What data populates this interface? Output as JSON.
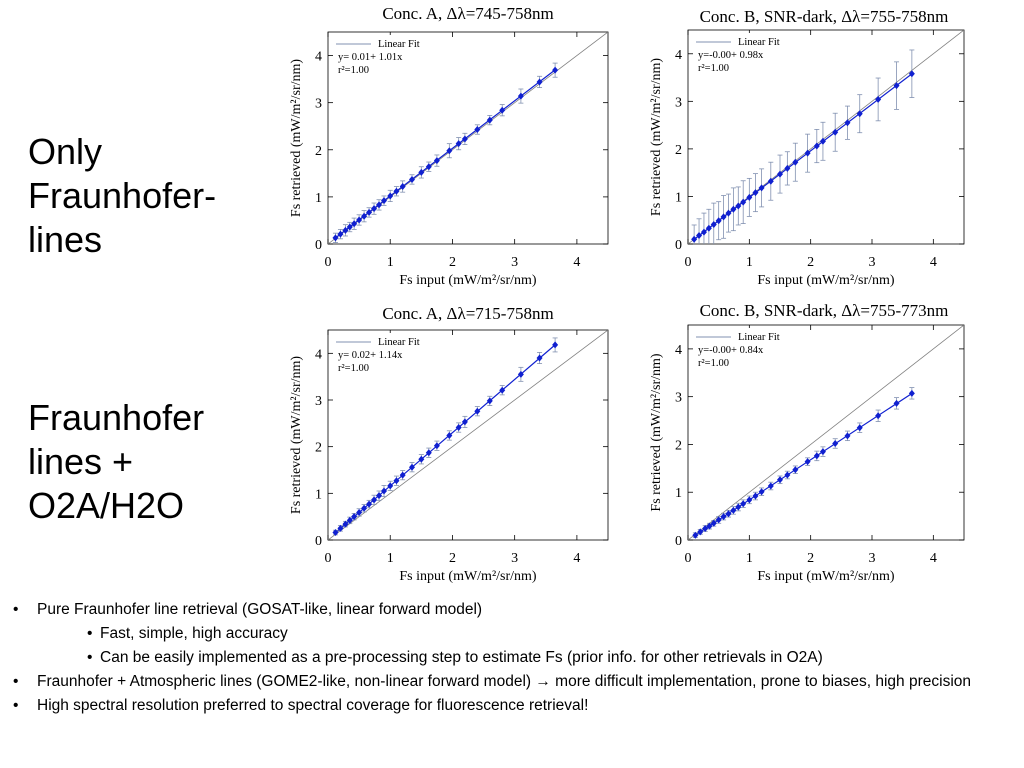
{
  "side_labels": {
    "top": [
      "Only",
      "Fraunhofer-",
      "lines"
    ],
    "bottom": [
      "Fraunhofer",
      "lines +",
      "O2A/H2O"
    ]
  },
  "chart_data": [
    {
      "type": "scatter",
      "title": "Conc. A, Δλ=745-758nm",
      "xlabel": "Fs input (mW/m²/sr/nm)",
      "ylabel": "Fs retrieved (mW/m²/sr/nm)",
      "xlim": [
        0,
        4.5
      ],
      "ylim": [
        0,
        4.5
      ],
      "xticks": [
        0,
        1,
        2,
        3,
        4
      ],
      "yticks": [
        0,
        1,
        2,
        3,
        4
      ],
      "legend": {
        "entry": "Linear Fit",
        "equation": "y= 0.01+ 1.01x",
        "r2": "r²=1.00",
        "position": "top-left"
      },
      "fit": {
        "intercept": 0.01,
        "slope": 1.01
      },
      "reference_line": "1:1",
      "series": [
        {
          "points": [
            [
              0.12,
              0.13
            ],
            [
              0.2,
              0.21
            ],
            [
              0.28,
              0.29
            ],
            [
              0.35,
              0.36
            ],
            [
              0.42,
              0.43
            ],
            [
              0.5,
              0.51
            ],
            [
              0.58,
              0.59
            ],
            [
              0.66,
              0.67
            ],
            [
              0.74,
              0.75
            ],
            [
              0.82,
              0.83
            ],
            [
              0.9,
              0.92
            ],
            [
              1.0,
              1.02
            ],
            [
              1.1,
              1.12
            ],
            [
              1.2,
              1.22
            ],
            [
              1.35,
              1.37
            ],
            [
              1.5,
              1.52
            ],
            [
              1.62,
              1.64
            ],
            [
              1.75,
              1.77
            ],
            [
              1.95,
              1.98
            ],
            [
              2.1,
              2.13
            ],
            [
              2.2,
              2.23
            ],
            [
              2.4,
              2.43
            ],
            [
              2.6,
              2.63
            ],
            [
              2.8,
              2.84
            ],
            [
              3.1,
              3.14
            ],
            [
              3.4,
              3.44
            ],
            [
              3.65,
              3.69
            ]
          ],
          "errors": [
            0.1,
            0.1,
            0.12,
            0.1,
            0.12,
            0.11,
            0.12,
            0.1,
            0.12,
            0.11,
            0.1,
            0.12,
            0.1,
            0.12,
            0.1,
            0.12,
            0.1,
            0.12,
            0.15,
            0.13,
            0.12,
            0.1,
            0.1,
            0.12,
            0.15,
            0.12,
            0.15
          ]
        }
      ]
    },
    {
      "type": "scatter",
      "title": "Conc. B, SNR-dark, Δλ=755-758nm",
      "xlabel": "Fs input (mW/m²/sr/nm)",
      "ylabel": "Fs retrieved (mW/m²/sr/nm)",
      "xlim": [
        0,
        4.5
      ],
      "ylim": [
        0,
        4.5
      ],
      "xticks": [
        0,
        1,
        2,
        3,
        4
      ],
      "yticks": [
        0,
        1,
        2,
        3,
        4
      ],
      "legend": {
        "entry": "Linear Fit",
        "equation": "y=-0.00+ 0.98x",
        "r2": "r²=1.00",
        "position": "top-left"
      },
      "fit": {
        "intercept": 0.0,
        "slope": 0.98
      },
      "reference_line": "1:1",
      "series": [
        {
          "points": [
            [
              0.1,
              0.1
            ],
            [
              0.18,
              0.18
            ],
            [
              0.26,
              0.25
            ],
            [
              0.34,
              0.33
            ],
            [
              0.42,
              0.41
            ],
            [
              0.5,
              0.49
            ],
            [
              0.58,
              0.57
            ],
            [
              0.66,
              0.65
            ],
            [
              0.74,
              0.73
            ],
            [
              0.82,
              0.8
            ],
            [
              0.9,
              0.88
            ],
            [
              1.0,
              0.98
            ],
            [
              1.1,
              1.08
            ],
            [
              1.2,
              1.18
            ],
            [
              1.35,
              1.32
            ],
            [
              1.5,
              1.47
            ],
            [
              1.62,
              1.59
            ],
            [
              1.75,
              1.72
            ],
            [
              1.95,
              1.91
            ],
            [
              2.1,
              2.06
            ],
            [
              2.2,
              2.16
            ],
            [
              2.4,
              2.35
            ],
            [
              2.6,
              2.55
            ],
            [
              2.8,
              2.74
            ],
            [
              3.1,
              3.04
            ],
            [
              3.4,
              3.33
            ],
            [
              3.65,
              3.58
            ]
          ],
          "errors": [
            0.3,
            0.35,
            0.4,
            0.4,
            0.45,
            0.4,
            0.45,
            0.4,
            0.45,
            0.4,
            0.45,
            0.4,
            0.4,
            0.4,
            0.4,
            0.4,
            0.35,
            0.4,
            0.4,
            0.35,
            0.4,
            0.4,
            0.35,
            0.4,
            0.45,
            0.5,
            0.5
          ]
        }
      ]
    },
    {
      "type": "scatter",
      "title": "Conc. A, Δλ=715-758nm",
      "xlabel": "Fs input (mW/m²/sr/nm)",
      "ylabel": "Fs retrieved (mW/m²/sr/nm)",
      "xlim": [
        0,
        4.5
      ],
      "ylim": [
        0,
        4.5
      ],
      "xticks": [
        0,
        1,
        2,
        3,
        4
      ],
      "yticks": [
        0,
        1,
        2,
        3,
        4
      ],
      "legend": {
        "entry": "Linear Fit",
        "equation": "y= 0.02+ 1.14x",
        "r2": "r²=1.00",
        "position": "top-left"
      },
      "fit": {
        "intercept": 0.02,
        "slope": 1.14
      },
      "reference_line": "1:1",
      "series": [
        {
          "points": [
            [
              0.12,
              0.16
            ],
            [
              0.2,
              0.25
            ],
            [
              0.28,
              0.34
            ],
            [
              0.35,
              0.42
            ],
            [
              0.42,
              0.5
            ],
            [
              0.5,
              0.59
            ],
            [
              0.58,
              0.68
            ],
            [
              0.66,
              0.77
            ],
            [
              0.74,
              0.86
            ],
            [
              0.82,
              0.95
            ],
            [
              0.9,
              1.05
            ],
            [
              1.0,
              1.16
            ],
            [
              1.1,
              1.27
            ],
            [
              1.2,
              1.39
            ],
            [
              1.35,
              1.56
            ],
            [
              1.5,
              1.73
            ],
            [
              1.62,
              1.87
            ],
            [
              1.75,
              2.02
            ],
            [
              1.95,
              2.24
            ],
            [
              2.1,
              2.41
            ],
            [
              2.2,
              2.53
            ],
            [
              2.4,
              2.76
            ],
            [
              2.6,
              2.98
            ],
            [
              2.8,
              3.21
            ],
            [
              3.1,
              3.55
            ],
            [
              3.4,
              3.9
            ],
            [
              3.65,
              4.18
            ]
          ],
          "errors": [
            0.05,
            0.06,
            0.06,
            0.07,
            0.07,
            0.08,
            0.08,
            0.08,
            0.1,
            0.1,
            0.12,
            0.1,
            0.1,
            0.1,
            0.1,
            0.1,
            0.1,
            0.1,
            0.1,
            0.1,
            0.12,
            0.1,
            0.1,
            0.1,
            0.15,
            0.12,
            0.15
          ]
        }
      ]
    },
    {
      "type": "scatter",
      "title": "Conc. B, SNR-dark, Δλ=755-773nm",
      "xlabel": "Fs input (mW/m²/sr/nm)",
      "ylabel": "Fs retrieved (mW/m²/sr/nm)",
      "xlim": [
        0,
        4.5
      ],
      "ylim": [
        0,
        4.5
      ],
      "xticks": [
        0,
        1,
        2,
        3,
        4
      ],
      "yticks": [
        0,
        1,
        2,
        3,
        4
      ],
      "legend": {
        "entry": "Linear Fit",
        "equation": "y=-0.00+ 0.84x",
        "r2": "r²=1.00",
        "position": "top-left"
      },
      "fit": {
        "intercept": 0.0,
        "slope": 0.84
      },
      "reference_line": "1:1",
      "series": [
        {
          "points": [
            [
              0.12,
              0.1
            ],
            [
              0.2,
              0.17
            ],
            [
              0.28,
              0.24
            ],
            [
              0.35,
              0.29
            ],
            [
              0.42,
              0.35
            ],
            [
              0.5,
              0.42
            ],
            [
              0.58,
              0.49
            ],
            [
              0.66,
              0.55
            ],
            [
              0.74,
              0.62
            ],
            [
              0.82,
              0.69
            ],
            [
              0.9,
              0.76
            ],
            [
              1.0,
              0.84
            ],
            [
              1.1,
              0.92
            ],
            [
              1.2,
              1.01
            ],
            [
              1.35,
              1.13
            ],
            [
              1.5,
              1.26
            ],
            [
              1.62,
              1.36
            ],
            [
              1.75,
              1.47
            ],
            [
              1.95,
              1.64
            ],
            [
              2.1,
              1.76
            ],
            [
              2.2,
              1.85
            ],
            [
              2.4,
              2.02
            ],
            [
              2.6,
              2.18
            ],
            [
              2.8,
              2.35
            ],
            [
              3.1,
              2.6
            ],
            [
              3.4,
              2.86
            ],
            [
              3.65,
              3.07
            ]
          ],
          "errors": [
            0.05,
            0.05,
            0.06,
            0.06,
            0.06,
            0.07,
            0.07,
            0.07,
            0.08,
            0.08,
            0.08,
            0.08,
            0.08,
            0.08,
            0.08,
            0.08,
            0.08,
            0.08,
            0.08,
            0.1,
            0.1,
            0.1,
            0.1,
            0.1,
            0.12,
            0.12,
            0.12
          ]
        }
      ]
    }
  ],
  "colors": {
    "marker": "#1020d0",
    "errorbar": "#8090b0",
    "reference": "#808080"
  },
  "bullets": [
    {
      "level": 1,
      "text": "Pure Fraunhofer line retrieval (GOSAT-like, linear forward model)"
    },
    {
      "level": 2,
      "text": "Fast, simple, high accuracy"
    },
    {
      "level": 2,
      "text": "Can be easily implemented as a pre-processing step to estimate Fs (prior info. for other retrievals in O2A)"
    },
    {
      "level": 1,
      "text": "Fraunhofer + Atmospheric lines (GOME2-like, non-linear forward model) → more difficult implementation, prone to biases, high precision"
    },
    {
      "level": 1,
      "text": "High spectral resolution preferred to spectral coverage for fluorescence retrieval!"
    }
  ]
}
